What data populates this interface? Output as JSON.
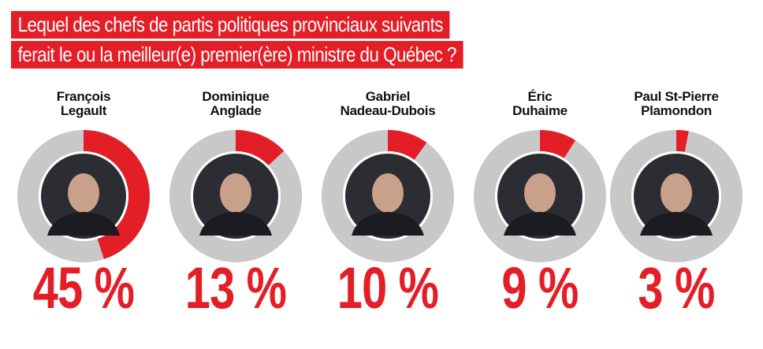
{
  "title": {
    "line1": "Lequel des chefs de partis politiques provinciaux suivants",
    "line2": "ferait le ou la meilleur(e) premier(ère) ministre du Québec ?"
  },
  "colors": {
    "accent": "#e41e26",
    "ring_bg": "#c8c8c8"
  },
  "chart_data": {
    "type": "pie",
    "categories": [
      "François Legault",
      "Dominique Anglade",
      "Gabriel Nadeau-Dubois",
      "Éric Duhaime",
      "Paul St-Pierre Plamondon"
    ],
    "values": [
      45,
      13,
      10,
      9,
      3
    ],
    "labels": [
      "45 %",
      "13 %",
      "10 %",
      "9 %",
      "3 %"
    ],
    "name_lines": [
      [
        "François",
        "Legault"
      ],
      [
        "Dominique",
        "Anglade"
      ],
      [
        "Gabriel",
        "Nadeau-Dubois"
      ],
      [
        "Éric",
        "Duhaime"
      ],
      [
        "Paul St-Pierre",
        "Plamondon"
      ]
    ],
    "ylim": [
      0,
      100
    ]
  }
}
